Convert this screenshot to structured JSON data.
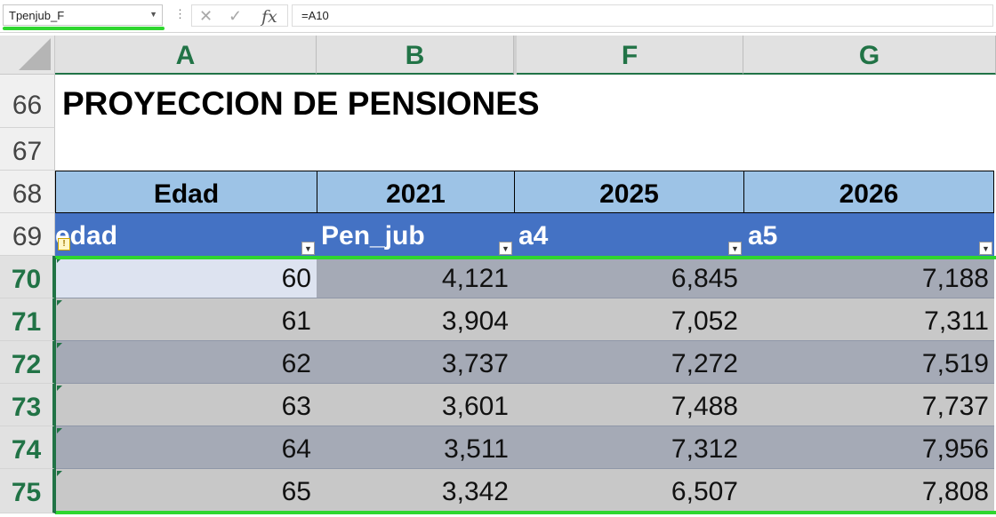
{
  "formula_bar": {
    "name_box": "Tpenjub_F",
    "formula": "=A10"
  },
  "columns": [
    "A",
    "B",
    "F",
    "G"
  ],
  "rows": [
    "66",
    "67",
    "68",
    "69",
    "70",
    "71",
    "72",
    "73",
    "74",
    "75"
  ],
  "title": "PROYECCION DE PENSIONES",
  "header_row": [
    "Edad",
    "2021",
    "2025",
    "2026"
  ],
  "table_headers": [
    "edad",
    "Pen_jub",
    "a4",
    "a5"
  ],
  "table_rows": [
    [
      "60",
      "4,121",
      "6,845",
      "7,188"
    ],
    [
      "61",
      "3,904",
      "7,052",
      "7,311"
    ],
    [
      "62",
      "3,737",
      "7,272",
      "7,519"
    ],
    [
      "63",
      "3,601",
      "7,488",
      "7,737"
    ],
    [
      "64",
      "3,511",
      "7,312",
      "7,956"
    ],
    [
      "65",
      "3,342",
      "6,507",
      "7,808"
    ]
  ],
  "colors": {
    "header_fill": "#9dc3e6",
    "table_header_fill": "#4472c4",
    "band_dark": "#a5aab6",
    "band_light": "#c8c8c8",
    "selection": "#2fd62f",
    "excel_green": "#217346"
  }
}
